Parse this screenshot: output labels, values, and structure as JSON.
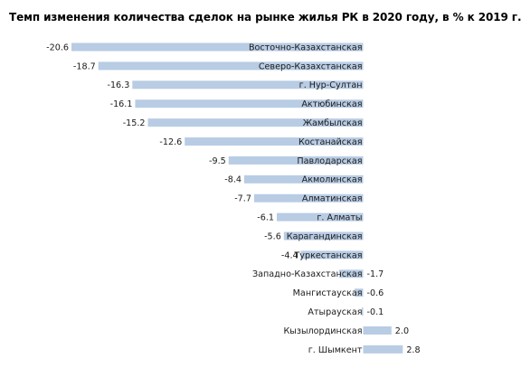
{
  "chart_data": {
    "type": "bar",
    "orientation": "horizontal",
    "title": "Темп изменения количества сделок на рынке жилья РК в 2020 году, в % к 2019 г.",
    "categories": [
      "Восточно-Казахстанская",
      "Северо-Казахстанская",
      "г. Нур-Султан",
      "Актюбинская",
      "Жамбылская",
      "Костанайская",
      "Павлодарская",
      "Акмолинская",
      "Алматинская",
      "г. Алматы",
      "Карагандинская",
      "Туркестанская",
      "Западно-Казахстанская",
      "Мангистауская",
      "Атырауская",
      "Кызылординская",
      "г. Шымкент"
    ],
    "values": [
      -20.6,
      -18.7,
      -16.3,
      -16.1,
      -15.2,
      -12.6,
      -9.5,
      -8.4,
      -7.7,
      -6.1,
      -5.6,
      -4.4,
      -1.7,
      -0.6,
      -0.1,
      2.0,
      2.8
    ],
    "value_labels": [
      "-20.6",
      "-18.7",
      "-16.3",
      "-16.1",
      "-15.2",
      "-12.6",
      "-9.5",
      "-8.4",
      "-7.7",
      "-6.1",
      "-5.6",
      "-4.4",
      "-1.7",
      "-0.6",
      "-0.1",
      "2.0",
      "2.8"
    ],
    "xlim": [
      -20.6,
      2.8
    ],
    "grid": false,
    "legend": "none",
    "bar_color": "#b8cce4",
    "text_color": "#1a1a1a"
  }
}
